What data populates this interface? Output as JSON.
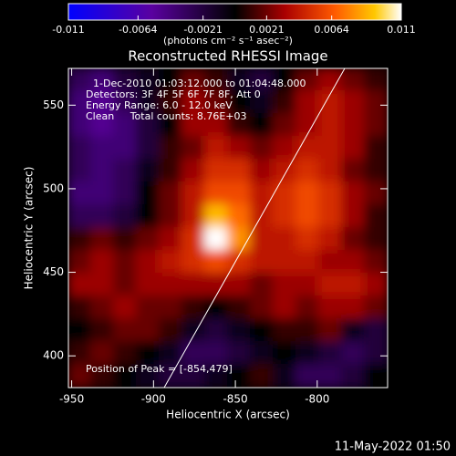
{
  "chart_data": {
    "type": "heatmap",
    "title": "Reconstructed RHESSI Image",
    "x_label": "Heliocentric X (arcsec)",
    "y_label": "Heliocentric Y (arcsec)",
    "xlim": [
      -952,
      -757
    ],
    "ylim": [
      381,
      572
    ],
    "xticks": [
      -950,
      -900,
      -850,
      -800
    ],
    "yticks": [
      400,
      450,
      500,
      550
    ],
    "clim": [
      -0.011,
      0.011
    ],
    "colorbar_ticks": [
      -0.011,
      -0.0064,
      -0.0021,
      0.0021,
      0.0064,
      0.011
    ],
    "colorbar_label": "(photons cm⁻² s⁻¹ asec⁻²)",
    "annotations": [
      "1-Dec-2010 01:03:12.000 to 01:04:48.000",
      "Detectors: 3F 4F 5F 6F 7F 8F, Att 0",
      "Energy Range: 6.0 - 12.0 keV",
      "Clean     Total counts: 8.76E+03",
      "Position of Peak = [-854,479]"
    ],
    "timestamp": "11-May-2022 01:50",
    "z": [
      [
        -0.003,
        -0.004,
        -0.002,
        -0.001,
        0,
        0.002,
        0.001,
        -0.001,
        -0.002,
        0,
        0.002,
        0.003,
        0.002,
        0.001
      ],
      [
        -0.004,
        -0.005,
        -0.003,
        -0.001,
        0.001,
        0.003,
        0.002,
        0,
        -0.001,
        0.001,
        0.003,
        0.004,
        0.003,
        0.002
      ],
      [
        -0.004,
        -0.005,
        -0.004,
        -0.002,
        0,
        0.003,
        0.003,
        0.001,
        0,
        0.002,
        0.003,
        0.004,
        0.003,
        0.002
      ],
      [
        -0.003,
        -0.004,
        -0.004,
        -0.002,
        0.001,
        0.002,
        0.004,
        0.003,
        0.002,
        0.003,
        0.004,
        0.004,
        0.003,
        0.001
      ],
      [
        -0.003,
        -0.004,
        -0.003,
        -0.001,
        0.001,
        0.003,
        0.005,
        0.005,
        0.003,
        0.004,
        0.005,
        0.004,
        0.002,
        0.001
      ],
      [
        -0.004,
        -0.004,
        -0.003,
        0,
        0.002,
        0.004,
        0.006,
        0.006,
        0.004,
        0.005,
        0.006,
        0.005,
        0.003,
        0.002
      ],
      [
        -0.003,
        -0.003,
        -0.002,
        0,
        0.002,
        0.004,
        0.009,
        0.007,
        0.004,
        0.005,
        0.006,
        0.005,
        0.003,
        0.001
      ],
      [
        0.001,
        0.002,
        0.001,
        0.002,
        0.003,
        0.005,
        0.011,
        0.008,
        0.004,
        0.004,
        0.005,
        0.004,
        0.002,
        0.001
      ],
      [
        0.002,
        0.003,
        0.002,
        0.003,
        0.004,
        0.005,
        0.006,
        0.005,
        0.004,
        0.004,
        0.004,
        0.003,
        0.003,
        0.002
      ],
      [
        0.003,
        0.003,
        0.002,
        0.003,
        0.003,
        0.003,
        0.003,
        0.003,
        0.002,
        0.003,
        0.003,
        0.004,
        0.004,
        0.003
      ],
      [
        0.001,
        0.002,
        0.003,
        0.002,
        0.002,
        0.001,
        0,
        0.001,
        0.002,
        0.003,
        0.002,
        0.003,
        0.003,
        0.002
      ],
      [
        0,
        0.001,
        0.002,
        0.002,
        0.001,
        -0.001,
        -0.002,
        -0.001,
        0,
        0.001,
        0.001,
        0.002,
        -0.001,
        -0.002
      ],
      [
        0.001,
        0.002,
        0.001,
        0,
        -0.001,
        -0.003,
        -0.003,
        -0.002,
        -0.001,
        0,
        -0.001,
        -0.002,
        -0.003,
        -0.002
      ],
      [
        0.002,
        0.001,
        0,
        -0.001,
        -0.002,
        -0.002,
        -0.001,
        0,
        0.001,
        -0.001,
        -0.003,
        -0.003,
        -0.002,
        0
      ]
    ]
  }
}
